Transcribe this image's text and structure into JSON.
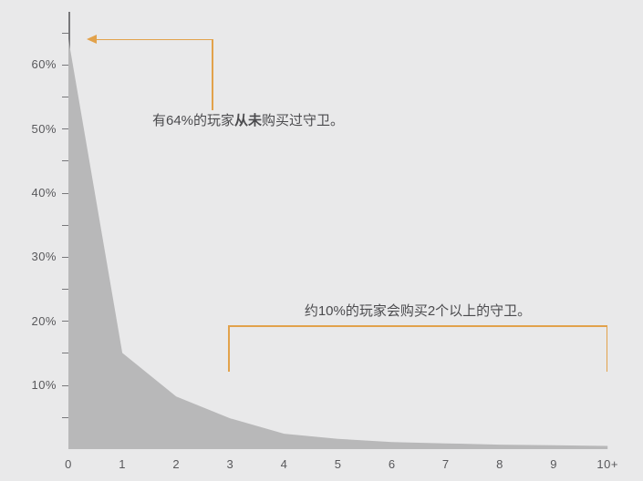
{
  "chart_data": {
    "type": "area",
    "title": "",
    "xlabel": "",
    "ylabel": "",
    "x_categories": [
      "0",
      "1",
      "2",
      "3",
      "4",
      "5",
      "6",
      "7",
      "8",
      "9",
      "10+"
    ],
    "values_pct": [
      64,
      15,
      8.2,
      4.8,
      2.4,
      1.6,
      1.1,
      0.9,
      0.7,
      0.6,
      0.5
    ],
    "ylim": [
      0,
      65
    ],
    "y_tick_interval_pct": 5,
    "y_labeled_ticks": [
      {
        "value": 10,
        "label": "10%"
      },
      {
        "value": 20,
        "label": "20%"
      },
      {
        "value": 30,
        "label": "30%"
      },
      {
        "value": 40,
        "label": "40%"
      },
      {
        "value": 50,
        "label": "50%"
      },
      {
        "value": 60,
        "label": "60%"
      }
    ],
    "grid": false,
    "legend": "none",
    "annotations": {
      "never_bought": {
        "prefix": "有64%的玩家",
        "bold": "从未",
        "suffix": "购买过守卫。"
      },
      "two_plus": {
        "text": "约10%的玩家会购买2个以上的守卫。"
      }
    },
    "colors": {
      "background": "#e9e9ea",
      "area_fill": "#b8b8b9",
      "axis": "#77777a",
      "tick_label": "#58585b",
      "annotation_text": "#4b4b4e",
      "accent_orange": "#e2a24b"
    }
  }
}
